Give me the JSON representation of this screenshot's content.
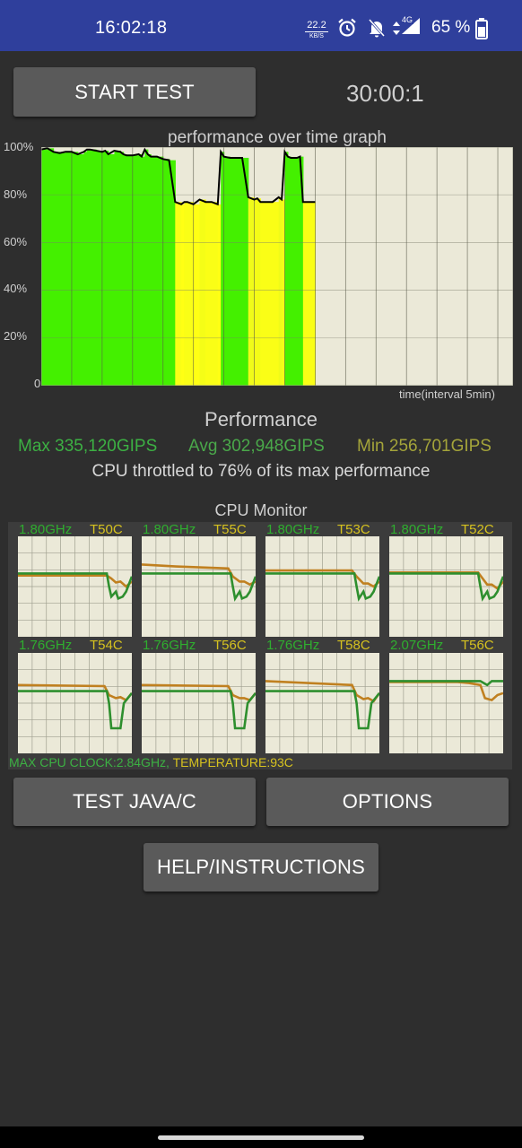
{
  "status_bar": {
    "time": "16:02:18",
    "net_speed_value": "22.2",
    "net_speed_unit": "KB/S",
    "network_type": "4G",
    "battery_text": "65 %",
    "icons": [
      "alarm-icon",
      "bell-off-icon",
      "data-arrows-icon",
      "signal-icon",
      "battery-icon"
    ]
  },
  "controls": {
    "start_test_label": "START TEST",
    "timer": "30:00:1"
  },
  "graph": {
    "title": "performance over time graph",
    "y_labels": [
      "100%",
      "80%",
      "60%",
      "40%",
      "20%",
      "0"
    ],
    "x_caption": "time(interval 5min)"
  },
  "chart_data": {
    "type": "area",
    "title": "performance over time graph",
    "xlabel": "time(interval 5min)",
    "ylabel": "",
    "ylim": [
      0,
      100
    ],
    "y_ticks": [
      "100%",
      "80%",
      "60%",
      "40%",
      "20%",
      "0"
    ],
    "grid": true,
    "x_minutes": [
      0,
      2,
      4,
      6,
      8,
      10,
      12,
      14,
      15,
      16,
      18,
      20,
      21,
      22,
      24,
      26,
      27,
      28,
      30,
      32,
      33,
      34,
      35,
      36,
      38,
      40,
      42,
      44,
      46,
      47,
      48,
      50,
      52,
      54,
      56,
      58,
      59,
      60,
      62,
      64,
      66,
      68,
      70,
      71,
      72,
      73,
      74,
      76,
      78,
      79,
      80,
      81,
      82,
      84,
      85,
      86,
      88,
      90
    ],
    "performance_pct": [
      99,
      99.5,
      98,
      97.5,
      98,
      98,
      97,
      98,
      99,
      99,
      98.5,
      98,
      98.5,
      97,
      98.5,
      98,
      97,
      96.5,
      96.5,
      97,
      96,
      99,
      97,
      96,
      96,
      95,
      94.5,
      77,
      76,
      77,
      77,
      76,
      78,
      77,
      77,
      76,
      98,
      96,
      95.5,
      95.5,
      95.5,
      79,
      78,
      78.5,
      77,
      77,
      77,
      77,
      79,
      78,
      98,
      96,
      95.5,
      95.5,
      96,
      77,
      77,
      77
    ]
  },
  "performance": {
    "title": "Performance",
    "max": "Max 335,120GIPS",
    "avg": "Avg 302,948GIPS",
    "min": "Min 256,701GIPS",
    "throttle_text": "CPU throttled to 76% of its max performance"
  },
  "cpu_monitor": {
    "title": "CPU Monitor",
    "cores": [
      {
        "freq": "1.80GHz",
        "temp": "T50C"
      },
      {
        "freq": "1.80GHz",
        "temp": "T55C"
      },
      {
        "freq": "1.80GHz",
        "temp": "T53C"
      },
      {
        "freq": "1.80GHz",
        "temp": "T52C"
      },
      {
        "freq": "1.76GHz",
        "temp": "T54C"
      },
      {
        "freq": "1.76GHz",
        "temp": "T56C"
      },
      {
        "freq": "1.76GHz",
        "temp": "T58C"
      },
      {
        "freq": "2.07GHz",
        "temp": "T56C"
      }
    ],
    "max_clock": "MAX CPU CLOCK:2.84GHz,",
    "temperature": "TEMPERATURE:93C",
    "colors": {
      "frequency": "#2e8f2e",
      "temperature": "#c08020"
    }
  },
  "buttons": {
    "test_java_c": "TEST JAVA/C",
    "options": "OPTIONS",
    "help": "HELP/INSTRUCTIONS"
  },
  "colors": {
    "status_bar_bg": "#2f3f9c",
    "background": "#2e2e2e",
    "button_bg": "#5a5a5a",
    "max_green": "#3cb043",
    "avg_green": "#4aa84a",
    "min_olive": "#a4a43a"
  }
}
